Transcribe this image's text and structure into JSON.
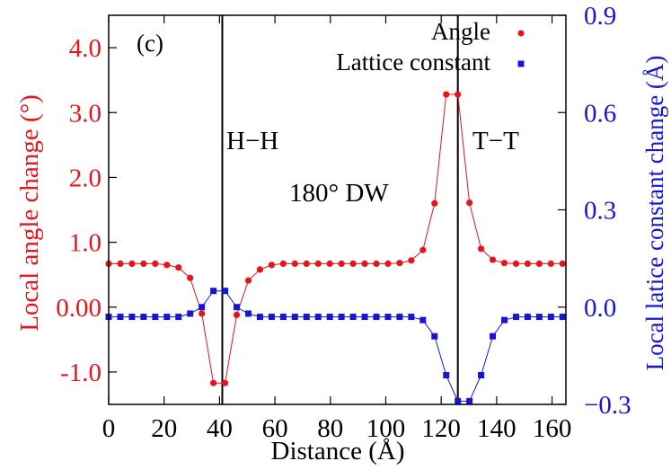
{
  "chart_data": {
    "type": "line",
    "panel_label": "(c)",
    "xlabel": "Distance (Å)",
    "ylabel_left": "Local angle change (°)",
    "ylabel_right": "Local latice constant change (Å)",
    "xlim": [
      0,
      165
    ],
    "ylim_left": [
      -1.5,
      4.5
    ],
    "ylim_right": [
      -0.3,
      0.9
    ],
    "x_ticks": [
      "0",
      "20",
      "40",
      "60",
      "80",
      "100",
      "120",
      "140",
      "160"
    ],
    "y_left_ticks": [
      "4.0",
      "3.0",
      "2.0",
      "1.0",
      "0.00",
      "-1.0"
    ],
    "y_right_ticks": [
      "0.9",
      "0.6",
      "0.3",
      "0.0",
      "−0.3"
    ],
    "annotations": {
      "hh": "H−H",
      "dw": "180° DW",
      "tt": "T−T"
    },
    "wall_positions": [
      41,
      126
    ],
    "legend": [
      {
        "label": "Angle",
        "color": "#e8141b",
        "marker": "circle"
      },
      {
        "label": "Lattice constant",
        "color": "#1515d6",
        "marker": "square"
      }
    ],
    "series": [
      {
        "name": "Angle",
        "axis": "left",
        "color": "#e8141b",
        "x": [
          0,
          4.2,
          8.4,
          12.6,
          16.8,
          21,
          25.2,
          29.4,
          33.6,
          37.8,
          42,
          46.2,
          50.4,
          54.6,
          58.8,
          63,
          67.2,
          71.4,
          75.6,
          79.8,
          84,
          88.2,
          92.4,
          96.6,
          100.8,
          105,
          109.2,
          113.4,
          117.6,
          121.8,
          126,
          130.2,
          134.4,
          138.6,
          142.8,
          147,
          151.2,
          155.4,
          159.6,
          163.8
        ],
        "values": [
          0.67,
          0.67,
          0.67,
          0.67,
          0.67,
          0.65,
          0.61,
          0.45,
          -0.1,
          -1.17,
          -1.17,
          -0.12,
          0.41,
          0.58,
          0.65,
          0.67,
          0.67,
          0.67,
          0.67,
          0.67,
          0.67,
          0.67,
          0.67,
          0.67,
          0.67,
          0.68,
          0.72,
          0.88,
          1.6,
          3.28,
          3.28,
          1.61,
          0.9,
          0.73,
          0.68,
          0.67,
          0.67,
          0.67,
          0.67,
          0.67
        ]
      },
      {
        "name": "Lattice constant",
        "axis": "right",
        "color": "#1515d6",
        "x": [
          0,
          4.2,
          8.4,
          12.6,
          16.8,
          21,
          25.2,
          29.4,
          33.6,
          37.8,
          42,
          46.2,
          50.4,
          54.6,
          58.8,
          63,
          67.2,
          71.4,
          75.6,
          79.8,
          84,
          88.2,
          92.4,
          96.6,
          100.8,
          105,
          109.2,
          113.4,
          117.6,
          121.8,
          126,
          130.2,
          134.4,
          138.6,
          142.8,
          147,
          151.2,
          155.4,
          159.6,
          163.8
        ],
        "values": [
          -0.03,
          -0.03,
          -0.03,
          -0.03,
          -0.03,
          -0.03,
          -0.03,
          -0.02,
          0.0,
          0.05,
          0.05,
          0.0,
          -0.02,
          -0.03,
          -0.03,
          -0.03,
          -0.03,
          -0.03,
          -0.03,
          -0.03,
          -0.03,
          -0.03,
          -0.03,
          -0.03,
          -0.03,
          -0.03,
          -0.03,
          -0.04,
          -0.09,
          -0.21,
          -0.29,
          -0.29,
          -0.21,
          -0.09,
          -0.04,
          -0.03,
          -0.03,
          -0.03,
          -0.03,
          -0.03
        ]
      }
    ],
    "grid": false
  }
}
